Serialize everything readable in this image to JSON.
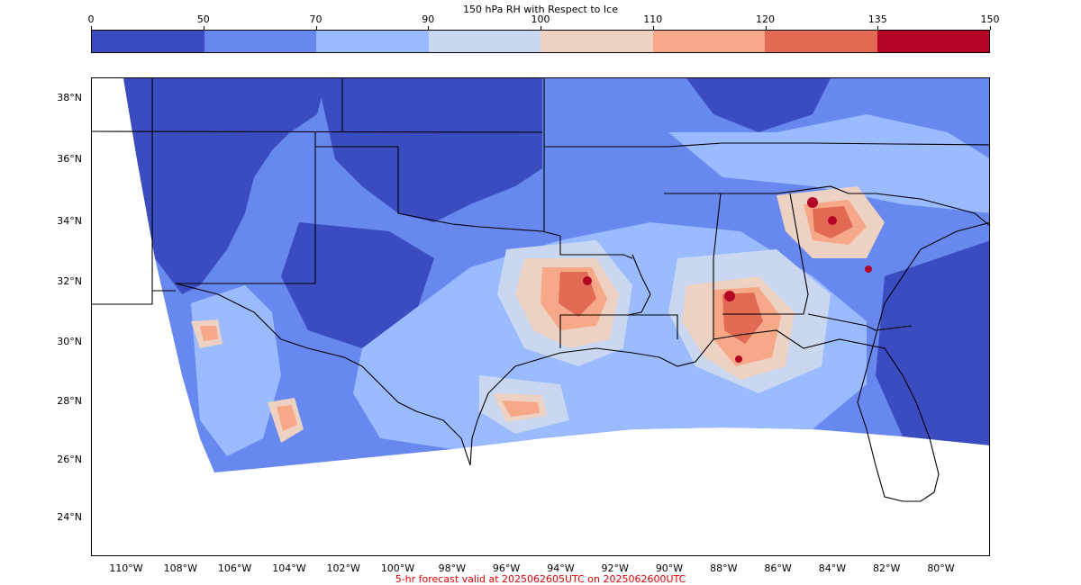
{
  "colorbar": {
    "title": "150 hPa RH with Respect to Ice",
    "ticks": [
      "0",
      "50",
      "70",
      "90",
      "100",
      "110",
      "120",
      "135",
      "150"
    ],
    "colors": [
      "#3b4cc0",
      "#6788ee",
      "#9abbff",
      "#c9d7f0",
      "#edd1c2",
      "#f7a889",
      "#e26952",
      "#b40426"
    ]
  },
  "map": {
    "lat_labels": [
      "38°N",
      "36°N",
      "34°N",
      "32°N",
      "30°N",
      "28°N",
      "26°N",
      "24°N"
    ],
    "lon_labels": [
      "110°W",
      "108°W",
      "106°W",
      "104°W",
      "102°W",
      "100°W",
      "98°W",
      "96°W",
      "94°W",
      "92°W",
      "90°W",
      "88°W",
      "86°W",
      "84°W",
      "82°W",
      "80°W"
    ],
    "background_color": "#6788ee"
  },
  "footer": "5-hr forecast valid at 2025062605UTC on 2025062600UTC"
}
